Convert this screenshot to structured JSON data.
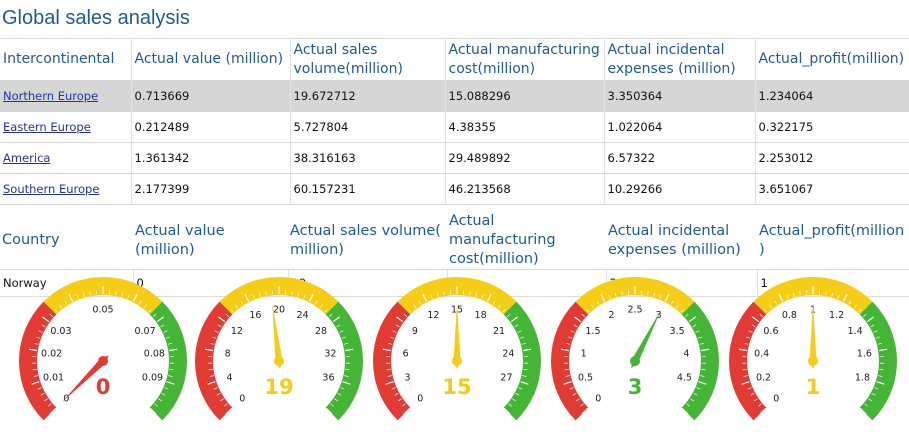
{
  "title": "Global sales analysis",
  "table1": {
    "headers": [
      "Intercontinental",
      "Actual value (million)",
      "Actual sales volume(million)",
      "Actual manufacturing cost(million)",
      "Actual incidental expenses (million)",
      "Actual_profit(million)"
    ],
    "rows": [
      [
        "Northern Europe",
        "0.713669",
        "19.672712",
        "15.088296",
        "3.350364",
        "1.234064"
      ],
      [
        "Eastern Europe",
        "0.212489",
        "5.727804",
        "4.38355",
        "1.022064",
        "0.322175"
      ],
      [
        "America",
        "1.361342",
        "38.316163",
        "29.489892",
        "6.57322",
        "2.253012"
      ],
      [
        "Southern Europe",
        "2.177399",
        "60.157231",
        "46.213568",
        "10.29266",
        "3.651067"
      ]
    ]
  },
  "table2": {
    "headers": [
      "Country",
      "Actual value (million)",
      "Actual sales volume( million)",
      "Actual manufacturing cost(million)",
      "Actual incidental expenses (million)",
      "Actual_profit(million )"
    ],
    "rows": [
      [
        "Norway",
        "0",
        "19",
        "15",
        "3",
        "1"
      ]
    ]
  },
  "colors": {
    "red": "#e23b33",
    "yellow": "#f5cc16",
    "green": "#45b535",
    "title": "#1f5a97",
    "selected_row": "#d6d6d6"
  },
  "gauges": [
    {
      "name": "Actual value",
      "min": 0,
      "max": 0.1,
      "value": 0,
      "display": "0",
      "value_color": "#e23b33",
      "ticks": [
        "0",
        "0.01",
        "0.02",
        "0.03",
        "0.05",
        "0.07",
        "0.08",
        "0.09"
      ]
    },
    {
      "name": "Actual sales volume",
      "min": 0,
      "max": 40,
      "value": 19,
      "display": "19",
      "value_color": "#f5cc16",
      "ticks": [
        "0",
        "4",
        "8",
        "12",
        "16",
        "20",
        "24",
        "28",
        "32",
        "36"
      ]
    },
    {
      "name": "Actual manufacturing cost",
      "min": 0,
      "max": 30,
      "value": 15,
      "display": "15",
      "value_color": "#f5cc16",
      "ticks": [
        "0",
        "3",
        "6",
        "9",
        "12",
        "15",
        "18",
        "21",
        "24",
        "27"
      ]
    },
    {
      "name": "Actual incidental expenses",
      "min": 0,
      "max": 5,
      "value": 3,
      "display": "3",
      "value_color": "#45b535",
      "ticks": [
        "0",
        "0.5",
        "1",
        "1.5",
        "2",
        "2.5",
        "3",
        "3.5",
        "4",
        "4.5"
      ]
    },
    {
      "name": "Actual profit",
      "min": 0,
      "max": 2,
      "value": 1,
      "display": "1",
      "value_color": "#f5cc16",
      "ticks": [
        "0",
        "0.2",
        "0.4",
        "0.6",
        "0.8",
        "1",
        "1.2",
        "1.4",
        "1.6",
        "1.8"
      ]
    }
  ]
}
